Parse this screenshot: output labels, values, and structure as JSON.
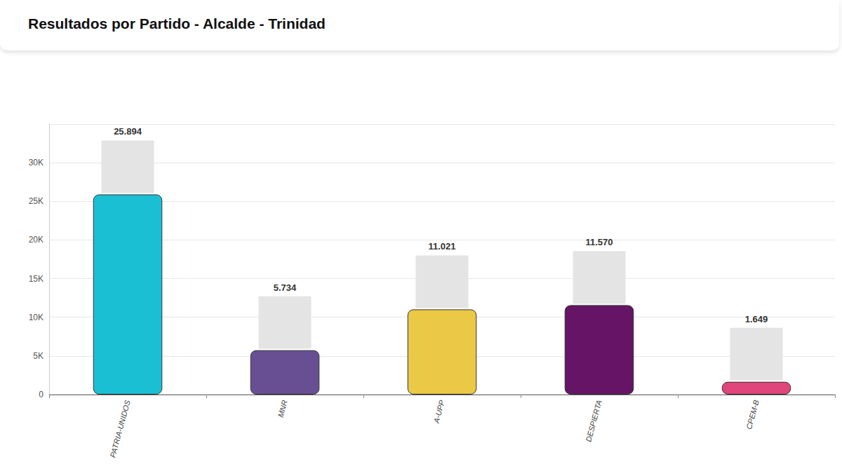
{
  "chart_data": {
    "type": "bar",
    "title": "Resultados por Partido - Alcalde - Trinidad",
    "categories": [
      "PATRIA-UNIDOS",
      "MNR",
      "A-UPP",
      "DESPIERTA",
      "CPEM-B"
    ],
    "values": [
      25894,
      5734,
      11021,
      11570,
      1649
    ],
    "value_labels": [
      "25.894",
      "5.734",
      "11.021",
      "11.570",
      "1.649"
    ],
    "colors": [
      "#1bbfd3",
      "#684f94",
      "#ebc845",
      "#661466",
      "#e0457b"
    ],
    "ylim": [
      0,
      35000
    ],
    "yticks": [
      0,
      {
        "value": 5000,
        "label": "5K"
      },
      {
        "value": 10000,
        "label": "10K"
      },
      {
        "value": 15000,
        "label": "15K"
      },
      {
        "value": 20000,
        "label": "20K"
      },
      {
        "value": 25000,
        "label": "25K"
      },
      {
        "value": 30000,
        "label": "30K"
      }
    ],
    "grid": true,
    "data_labels": true
  }
}
